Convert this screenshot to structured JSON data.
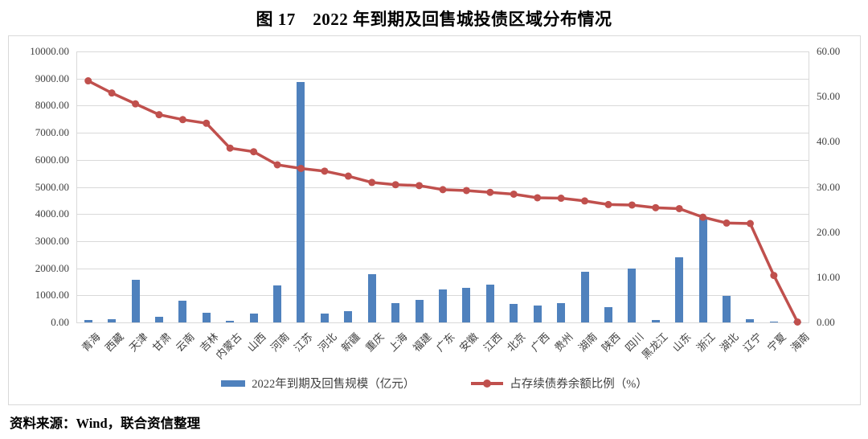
{
  "title": "图 17　2022 年到期及回售城投债区域分布情况",
  "source_note": "资料来源：Wind，联合资信整理",
  "legend": {
    "bar_label": "2022年到期及回售规模（亿元）",
    "line_label": "占存续债券余额比例（%）"
  },
  "colors": {
    "bar": "#4F81BD",
    "line": "#C0504D",
    "grid": "#d9d9d9",
    "axis_text": "#404040"
  },
  "chart_data": {
    "type": "bar",
    "subtype": "bar+line combo",
    "title": "图 17　2022 年到期及回售城投债区域分布情况",
    "categories": [
      "青海",
      "西藏",
      "天津",
      "甘肃",
      "云南",
      "吉林",
      "内蒙古",
      "山西",
      "河南",
      "江苏",
      "河北",
      "新疆",
      "重庆",
      "上海",
      "福建",
      "广东",
      "安徽",
      "江西",
      "北京",
      "广西",
      "贵州",
      "湖南",
      "陕西",
      "四川",
      "黑龙江",
      "山东",
      "浙江",
      "湖北",
      "辽宁",
      "宁夏",
      "海南"
    ],
    "series": [
      {
        "name": "2022年到期及回售规模（亿元）",
        "type": "bar",
        "axis": "left",
        "values": [
          100,
          130,
          1570,
          200,
          790,
          350,
          70,
          340,
          1370,
          8860,
          330,
          430,
          1780,
          710,
          840,
          1220,
          1290,
          1390,
          670,
          620,
          720,
          1880,
          550,
          1980,
          100,
          2390,
          3850,
          990,
          110,
          20,
          10
        ]
      },
      {
        "name": "占存续债券余额比例（%）",
        "type": "line",
        "axis": "right",
        "values": [
          53.5,
          50.8,
          48.4,
          46.0,
          44.9,
          44.1,
          38.6,
          37.8,
          34.9,
          34.1,
          33.5,
          32.4,
          31.0,
          30.5,
          30.3,
          29.4,
          29.2,
          28.8,
          28.4,
          27.6,
          27.5,
          26.9,
          26.1,
          26.0,
          25.4,
          25.2,
          23.3,
          22.0,
          21.9,
          10.4,
          0.1
        ]
      }
    ],
    "left_axis": {
      "min": 0,
      "max": 10000,
      "step": 1000,
      "tick_format": "0.00"
    },
    "right_axis": {
      "min": 0,
      "max": 60,
      "step": 10,
      "tick_format": "0.00"
    },
    "grid": true,
    "legend_position": "bottom",
    "x_label_rotation": -45
  }
}
